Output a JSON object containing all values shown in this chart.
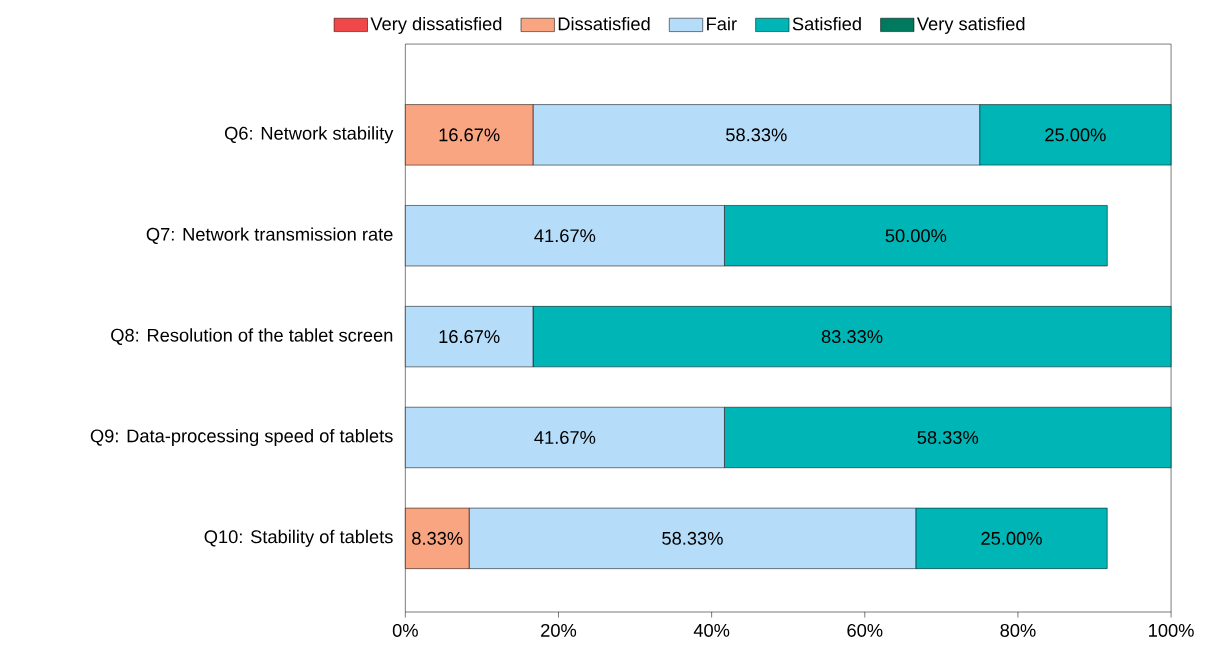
{
  "chart_data": {
    "type": "bar",
    "orientation": "horizontal",
    "stacked": true,
    "legend": "top",
    "categories": [
      "Q6: Network stability",
      "Q7: Network transmission rate",
      "Q8: Resolution of the tablet screen",
      "Q9: Data-processing speed of tablets",
      "Q10: Stability of tablets"
    ],
    "series": [
      {
        "name": "Very dissatisfied",
        "color": "#f04848",
        "values": [
          0,
          0,
          0,
          0,
          0
        ],
        "value_labels": [
          null,
          null,
          null,
          null,
          null
        ]
      },
      {
        "name": "Dissatisfied",
        "color": "#f9a582",
        "values": [
          16.67,
          0,
          0,
          0,
          8.33
        ],
        "value_labels": [
          "16.67%",
          null,
          null,
          null,
          "8.33%"
        ]
      },
      {
        "name": "Fair",
        "color": "#b5dcf8",
        "values": [
          58.33,
          41.67,
          16.67,
          41.67,
          58.33
        ],
        "value_labels": [
          "58.33%",
          "41.67%",
          "16.67%",
          "41.67%",
          "58.33%"
        ]
      },
      {
        "name": "Satisfied",
        "color": "#00b5b5",
        "values": [
          25,
          50,
          83.33,
          58.33,
          25
        ],
        "value_labels": [
          "25.00%",
          "50.00%",
          "83.33%",
          "58.33%",
          "25.00%"
        ]
      },
      {
        "name": "Very satisfied",
        "color": "#007a5e",
        "values": [
          0,
          0,
          0,
          0,
          0
        ],
        "value_labels": [
          null,
          null,
          null,
          null,
          null
        ]
      }
    ],
    "xlim": [
      0,
      100
    ],
    "xticks": [
      {
        "value": 0,
        "label": "0%"
      },
      {
        "value": 20,
        "label": "20%"
      },
      {
        "value": 40,
        "label": "40%"
      },
      {
        "value": 60,
        "label": "60%"
      },
      {
        "value": 80,
        "label": "80%"
      },
      {
        "value": 100,
        "label": "100%"
      }
    ]
  }
}
